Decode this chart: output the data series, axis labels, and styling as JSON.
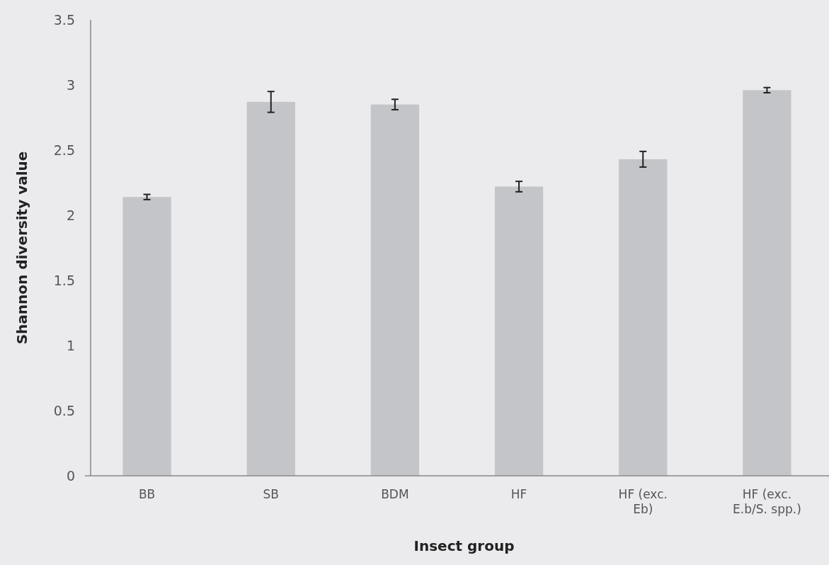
{
  "chart_data": {
    "type": "bar",
    "xlabel": "Insect group",
    "ylabel": "Shannon diversity value",
    "categories": [
      "BB",
      "SB",
      "BDM",
      "HF",
      "HF (exc. Eb)",
      "HF (exc. E.b/S. spp.)"
    ],
    "values": [
      2.14,
      2.87,
      2.85,
      2.22,
      2.43,
      2.96
    ],
    "errors": [
      0.02,
      0.08,
      0.04,
      0.04,
      0.06,
      0.02
    ],
    "color": "#c4c5c8",
    "ylim": [
      0,
      3.5
    ],
    "yticks": [
      0,
      0.5,
      1,
      1.5,
      2,
      2.5,
      3,
      3.5
    ],
    "grid": false
  }
}
